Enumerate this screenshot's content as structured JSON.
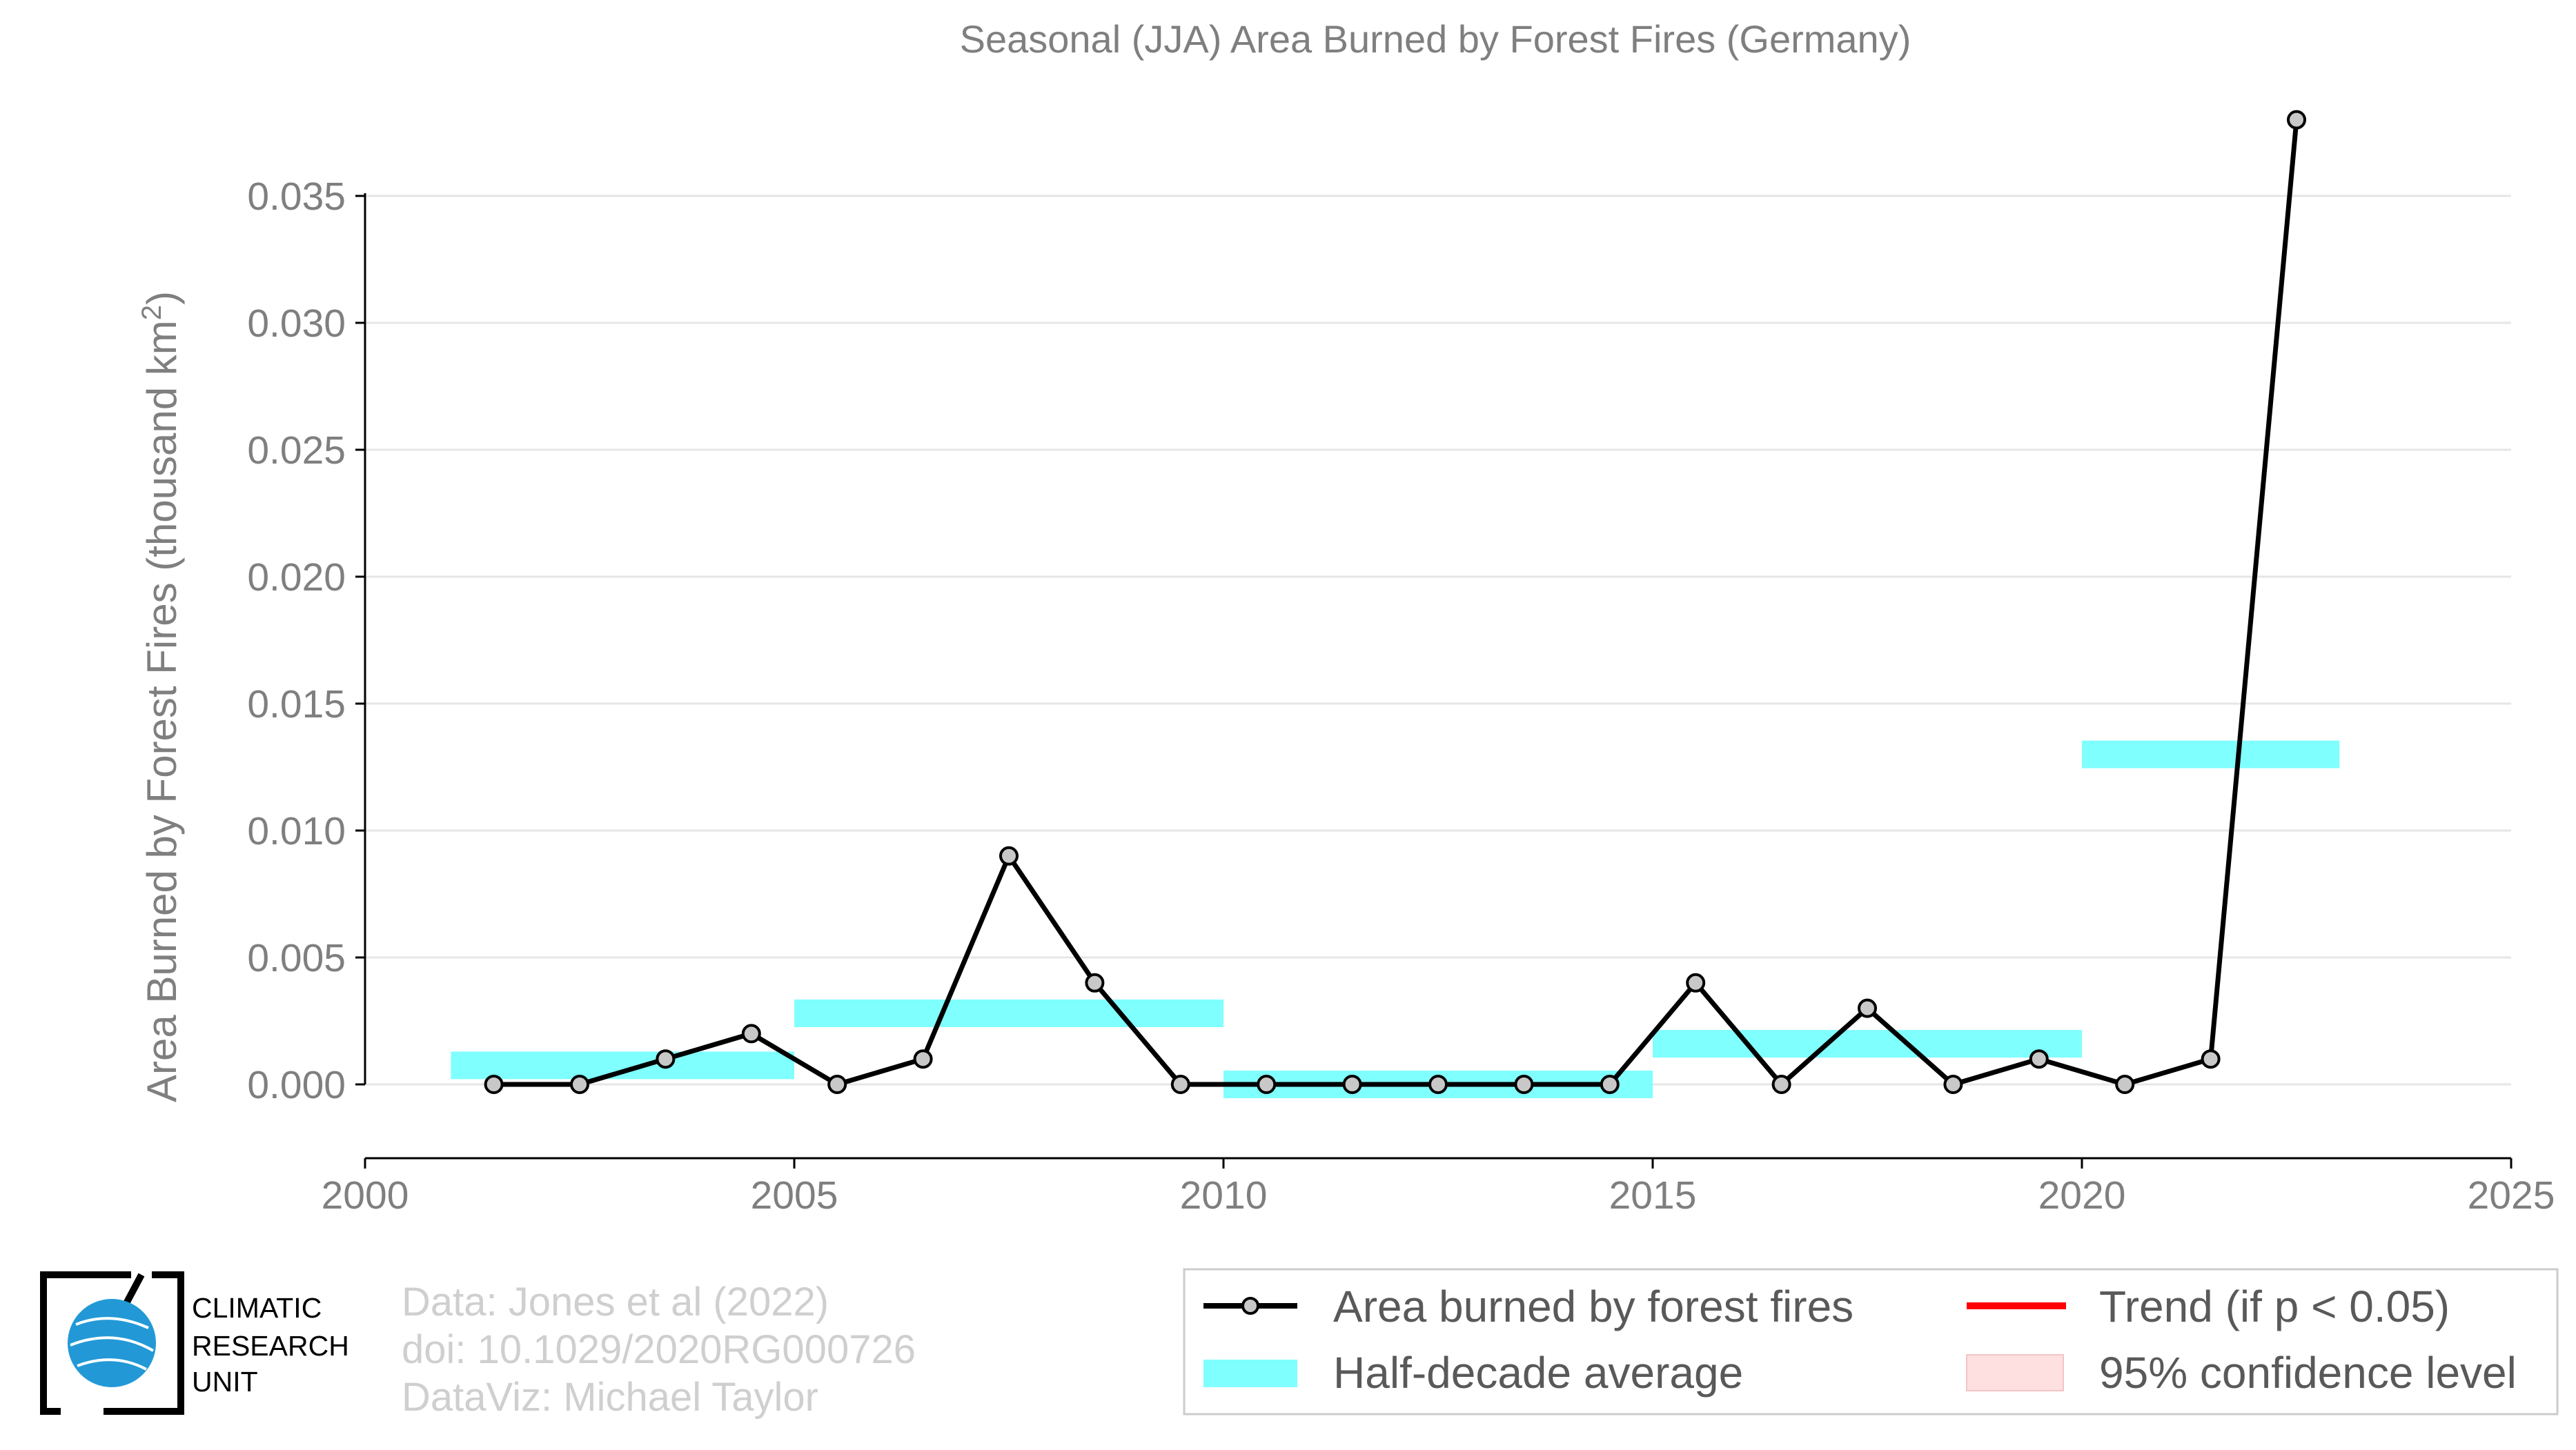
{
  "chart_data": {
    "type": "line",
    "title": "Seasonal (JJA) Area Burned by Forest Fires (Germany)",
    "ylabel": "Area Burned by Forest Fires (thousand km",
    "ylabel_sup": "2",
    "ylabel_close": ")",
    "xlabel": "",
    "xlim": [
      2000,
      2025
    ],
    "ylim": [
      -0.003,
      0.0385
    ],
    "x_ticks": [
      2000,
      2005,
      2010,
      2015,
      2020,
      2025
    ],
    "x_tick_labels": [
      "2000",
      "2005",
      "2010",
      "2015",
      "2020",
      "2025"
    ],
    "y_ticks": [
      0.0,
      0.005,
      0.01,
      0.015,
      0.02,
      0.025,
      0.03,
      0.035
    ],
    "y_tick_labels": [
      "0.000",
      "0.005",
      "0.010",
      "0.015",
      "0.020",
      "0.025",
      "0.030",
      "0.035"
    ],
    "grid": true,
    "series": [
      {
        "name": "Area burned by forest fires",
        "color": "#000000",
        "marker_fill": "#c8c8c8",
        "x": [
          2001.5,
          2002.5,
          2003.5,
          2004.5,
          2005.5,
          2006.5,
          2007.5,
          2008.5,
          2009.5,
          2010.5,
          2011.5,
          2012.5,
          2013.5,
          2014.5,
          2015.5,
          2016.5,
          2017.5,
          2018.5,
          2019.5,
          2020.5,
          2021.5,
          2022.5
        ],
        "y": [
          0.0,
          0.0,
          0.001,
          0.002,
          0.0,
          0.001,
          0.009,
          0.004,
          0.0,
          0.0,
          0.0,
          0.0,
          0.0,
          0.0,
          0.004,
          0.0,
          0.003,
          0.0,
          0.001,
          0.0,
          0.001,
          0.038
        ]
      }
    ],
    "half_decade_average": {
      "name": "Half-decade average",
      "color": "#80ffff",
      "segments": [
        {
          "x0": 2001,
          "x1": 2005,
          "y": 0.00075
        },
        {
          "x0": 2005,
          "x1": 2010,
          "y": 0.0028
        },
        {
          "x0": 2010,
          "x1": 2015,
          "y": 0.0
        },
        {
          "x0": 2015,
          "x1": 2020,
          "y": 0.0016
        },
        {
          "x0": 2020,
          "x1": 2023,
          "y": 0.013
        }
      ]
    },
    "legend": {
      "placement": "bottom-right",
      "items": [
        {
          "label": "Area burned by forest fires",
          "kind": "line-marker",
          "color": "#000000"
        },
        {
          "label": "Trend (if p < 0.05)",
          "kind": "line",
          "color": "#ff0000"
        },
        {
          "label": "Half-decade average",
          "kind": "band",
          "color": "#80ffff"
        },
        {
          "label": "95% confidence level",
          "kind": "band",
          "color": "#ffe0e0"
        }
      ]
    }
  },
  "credits": {
    "line1": "Data: Jones et al (2022)",
    "line2": "doi: 10.1029/2020RG000726",
    "line3": "DataViz: Michael Taylor"
  },
  "logo": {
    "line1": "CLIMATIC",
    "line2": "RESEARCH",
    "line3": "UNIT"
  }
}
